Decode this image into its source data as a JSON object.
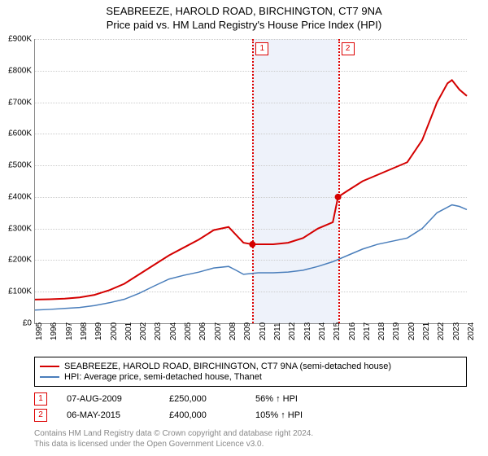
{
  "title": "SEABREEZE, HAROLD ROAD, BIRCHINGTON, CT7 9NA",
  "subtitle": "Price paid vs. HM Land Registry's House Price Index (HPI)",
  "chart": {
    "type": "line",
    "background_color": "#ffffff",
    "grid_color": "#cccccc",
    "shaded_band_color": "#eef2fa",
    "ylim": [
      0,
      900000
    ],
    "ytick_step": 100000,
    "yticks": [
      "£0",
      "£100K",
      "£200K",
      "£300K",
      "£400K",
      "£500K",
      "£600K",
      "£700K",
      "£800K",
      "£900K"
    ],
    "x_start_year": 1995,
    "x_end_year": 2024,
    "xticks": [
      "1995",
      "1996",
      "1997",
      "1998",
      "1999",
      "2000",
      "2001",
      "2002",
      "2003",
      "2004",
      "2005",
      "2006",
      "2007",
      "2008",
      "2009",
      "2010",
      "2011",
      "2012",
      "2013",
      "2014",
      "2015",
      "2016",
      "2017",
      "2018",
      "2019",
      "2020",
      "2021",
      "2022",
      "2023",
      "2024"
    ],
    "shaded_band": {
      "from_year": 2009.6,
      "to_year": 2015.35
    },
    "event_lines": [
      {
        "year": 2009.6,
        "label": "1"
      },
      {
        "year": 2015.35,
        "label": "2"
      }
    ],
    "series": [
      {
        "name": "price_paid",
        "label": "SEABREEZE, HAROLD ROAD, BIRCHINGTON, CT7 9NA (semi-detached house)",
        "color": "#d40000",
        "line_width": 2,
        "points": [
          [
            1995,
            75000
          ],
          [
            1996,
            76000
          ],
          [
            1997,
            78000
          ],
          [
            1998,
            82000
          ],
          [
            1999,
            90000
          ],
          [
            2000,
            105000
          ],
          [
            2001,
            125000
          ],
          [
            2002,
            155000
          ],
          [
            2003,
            185000
          ],
          [
            2004,
            215000
          ],
          [
            2005,
            240000
          ],
          [
            2006,
            265000
          ],
          [
            2007,
            295000
          ],
          [
            2008,
            305000
          ],
          [
            2008.5,
            280000
          ],
          [
            2009,
            255000
          ],
          [
            2009.6,
            250000
          ],
          [
            2010,
            250000
          ],
          [
            2011,
            250000
          ],
          [
            2012,
            255000
          ],
          [
            2013,
            270000
          ],
          [
            2014,
            300000
          ],
          [
            2014.5,
            310000
          ],
          [
            2015,
            320000
          ],
          [
            2015.35,
            400000
          ],
          [
            2016,
            420000
          ],
          [
            2017,
            450000
          ],
          [
            2018,
            470000
          ],
          [
            2019,
            490000
          ],
          [
            2020,
            510000
          ],
          [
            2021,
            580000
          ],
          [
            2022,
            700000
          ],
          [
            2022.7,
            760000
          ],
          [
            2023,
            770000
          ],
          [
            2023.5,
            740000
          ],
          [
            2024,
            720000
          ]
        ],
        "sale_dots": [
          {
            "year": 2009.6,
            "price": 250000
          },
          {
            "year": 2015.35,
            "price": 400000
          }
        ]
      },
      {
        "name": "hpi",
        "label": "HPI: Average price, semi-detached house, Thanet",
        "color": "#4a7ebb",
        "line_width": 1.5,
        "points": [
          [
            1995,
            42000
          ],
          [
            1996,
            44000
          ],
          [
            1997,
            47000
          ],
          [
            1998,
            50000
          ],
          [
            1999,
            56000
          ],
          [
            2000,
            65000
          ],
          [
            2001,
            76000
          ],
          [
            2002,
            95000
          ],
          [
            2003,
            118000
          ],
          [
            2004,
            140000
          ],
          [
            2005,
            152000
          ],
          [
            2006,
            162000
          ],
          [
            2007,
            175000
          ],
          [
            2008,
            180000
          ],
          [
            2008.5,
            168000
          ],
          [
            2009,
            155000
          ],
          [
            2010,
            160000
          ],
          [
            2011,
            160000
          ],
          [
            2012,
            162000
          ],
          [
            2013,
            168000
          ],
          [
            2014,
            180000
          ],
          [
            2015,
            195000
          ],
          [
            2016,
            215000
          ],
          [
            2017,
            235000
          ],
          [
            2018,
            250000
          ],
          [
            2019,
            260000
          ],
          [
            2020,
            270000
          ],
          [
            2021,
            300000
          ],
          [
            2022,
            350000
          ],
          [
            2023,
            375000
          ],
          [
            2023.5,
            370000
          ],
          [
            2024,
            360000
          ]
        ]
      }
    ]
  },
  "sales": [
    {
      "badge": "1",
      "date": "07-AUG-2009",
      "price": "£250,000",
      "vs_hpi": "56% ↑ HPI"
    },
    {
      "badge": "2",
      "date": "06-MAY-2015",
      "price": "£400,000",
      "vs_hpi": "105% ↑ HPI"
    }
  ],
  "footnote_line1": "Contains HM Land Registry data © Crown copyright and database right 2024.",
  "footnote_line2": "This data is licensed under the Open Government Licence v3.0."
}
